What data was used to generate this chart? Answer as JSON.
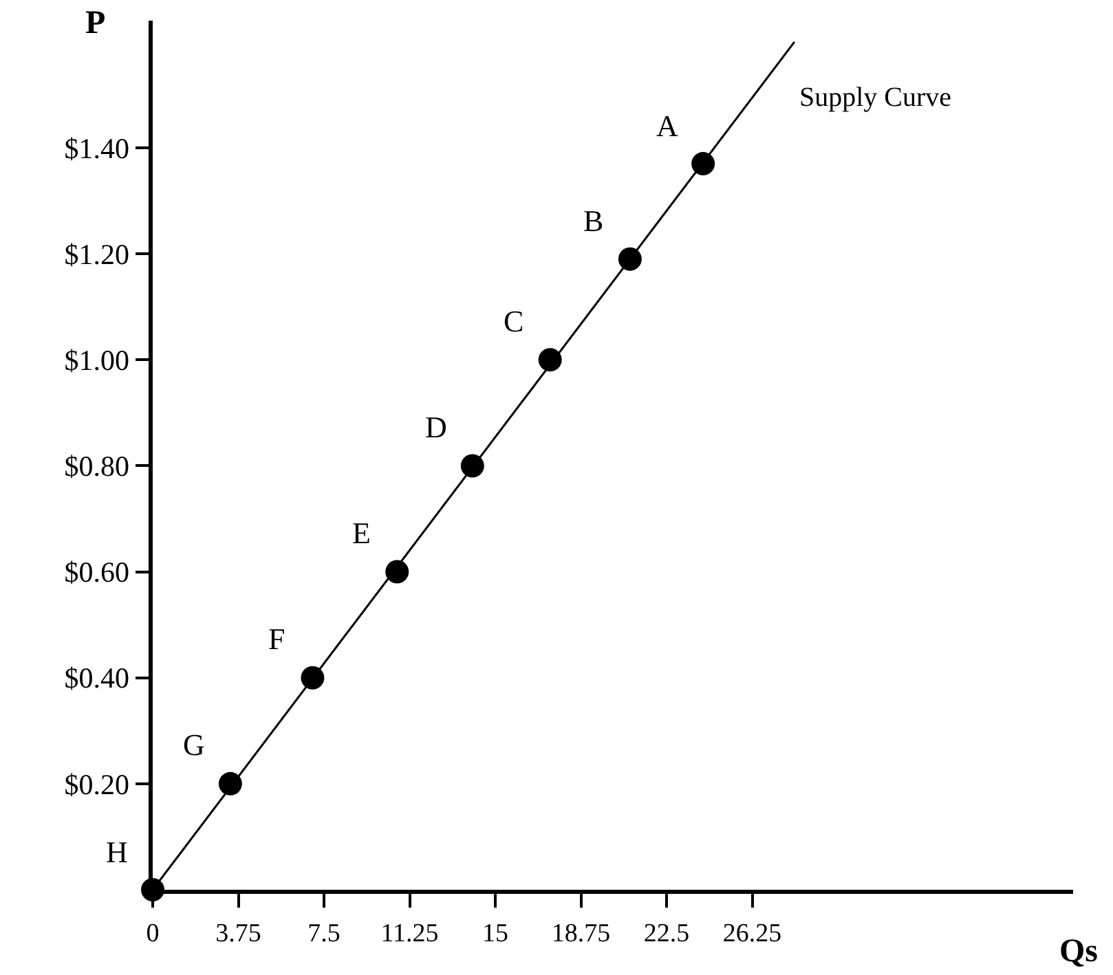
{
  "chart_data": {
    "type": "scatter",
    "xlabel": "Qs",
    "ylabel": "P",
    "series": [
      {
        "name": "Supply Curve",
        "type": "line",
        "color": "#000000",
        "marker": "none",
        "x": [
          0,
          28.1
        ],
        "values": [
          0,
          1.6
        ]
      },
      {
        "color": "#000000",
        "marker": "circle",
        "x": [
          0,
          3.4,
          7,
          10.7,
          14,
          17.4,
          20.9,
          24.1
        ],
        "values": [
          0,
          0.2,
          0.4,
          0.6,
          0.8,
          1.0,
          1.19,
          1.37
        ]
      }
    ],
    "annotations": [
      {
        "text": "H",
        "x": 0,
        "y": 0
      },
      {
        "text": "G",
        "x": 3.4,
        "y": 0.2
      },
      {
        "text": "F",
        "x": 7,
        "y": 0.4
      },
      {
        "text": "E",
        "x": 10.7,
        "y": 0.6
      },
      {
        "text": "D",
        "x": 14,
        "y": 0.8
      },
      {
        "text": "C",
        "x": 17.4,
        "y": 1.0
      },
      {
        "text": "B",
        "x": 20.9,
        "y": 1.19
      },
      {
        "text": "A",
        "x": 24.1,
        "y": 1.37
      }
    ],
    "xlim": [
      0,
      40.3
    ],
    "ylim": [
      0,
      1.64
    ],
    "xticks": [
      0,
      3.75,
      7.5,
      11.25,
      15,
      18.75,
      22.5,
      26.25
    ],
    "yticks": [
      {
        "value": 0.2,
        "label": "$0.20"
      },
      {
        "value": 0.4,
        "label": "$0.40"
      },
      {
        "value": 0.6,
        "label": "$0.60"
      },
      {
        "value": 0.8,
        "label": "$0.80"
      },
      {
        "value": 1.0,
        "label": "$1.00"
      },
      {
        "value": 1.2,
        "label": "$1.20"
      },
      {
        "value": 1.4,
        "label": "$1.40"
      }
    ],
    "grid": false,
    "legend": false
  }
}
